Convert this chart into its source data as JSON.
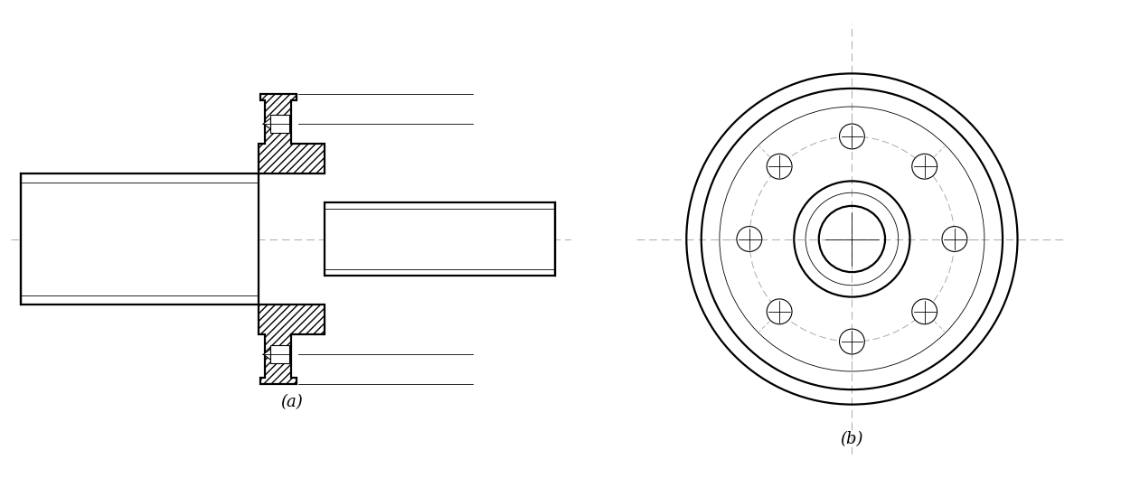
{
  "fig_width": 12.4,
  "fig_height": 5.29,
  "bg_color": "#ffffff",
  "line_color": "#000000",
  "dash_color": "#aaaaaa",
  "lw_thick": 1.6,
  "lw_thin": 0.8,
  "lw_vt": 0.6,
  "lw_dash": 0.7,
  "label_a": "(a)",
  "label_b": "(b)",
  "label_fontsize": 13
}
